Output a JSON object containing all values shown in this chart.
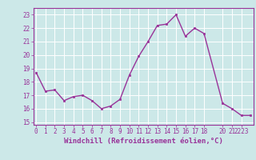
{
  "x": [
    0,
    1,
    2,
    3,
    4,
    5,
    6,
    7,
    8,
    9,
    10,
    11,
    12,
    13,
    14,
    15,
    16,
    17,
    18,
    20,
    21,
    22,
    23
  ],
  "y": [
    18.7,
    17.3,
    17.4,
    16.6,
    16.9,
    17.0,
    16.6,
    16.0,
    16.2,
    16.7,
    18.5,
    19.9,
    21.0,
    22.2,
    22.3,
    23.0,
    21.4,
    22.0,
    21.6,
    16.4,
    16.0,
    15.5,
    15.5
  ],
  "line_color": "#993399",
  "marker": "s",
  "markersize": 2.0,
  "linewidth": 1.0,
  "xlabel": "Windchill (Refroidissement éolien,°C)",
  "xlabel_fontsize": 6.5,
  "xlabel_color": "#993399",
  "yticks": [
    15,
    16,
    17,
    18,
    19,
    20,
    21,
    22,
    23
  ],
  "xtick_labels": [
    "0",
    "1",
    "2",
    "3",
    "4",
    "5",
    "6",
    "7",
    "8",
    "9",
    "10",
    "11",
    "12",
    "13",
    "14",
    "15",
    "16",
    "17",
    "18",
    " ",
    "20",
    "21",
    "2223"
  ],
  "xtick_positions": [
    0,
    1,
    2,
    3,
    4,
    5,
    6,
    7,
    8,
    9,
    10,
    11,
    12,
    13,
    14,
    15,
    16,
    17,
    18,
    19,
    20,
    21,
    22
  ],
  "ylim": [
    14.8,
    23.5
  ],
  "xlim": [
    -0.3,
    23.3
  ],
  "bg_color": "#cce8e8",
  "grid_color": "#ffffff",
  "tick_color": "#993399",
  "tick_fontsize": 5.5,
  "spine_color": "#993399"
}
